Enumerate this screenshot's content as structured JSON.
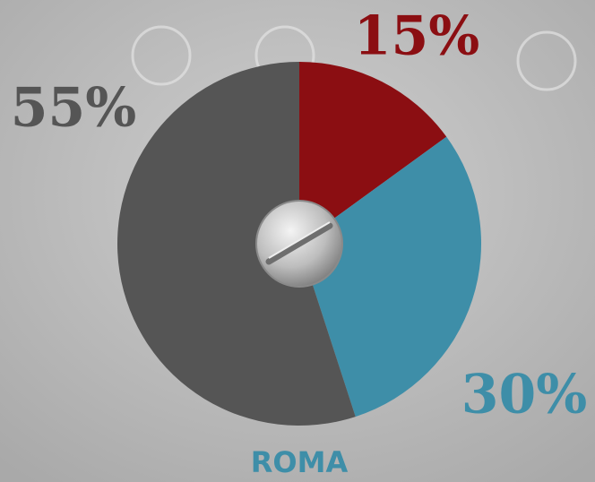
{
  "chart_data": {
    "type": "pie",
    "values": [
      15,
      30,
      55
    ],
    "value_labels": [
      "15%",
      "30%",
      "55%"
    ],
    "colors": [
      "#8b0e12",
      "#3e8ea8",
      "#555555"
    ],
    "label": "ROMA"
  }
}
